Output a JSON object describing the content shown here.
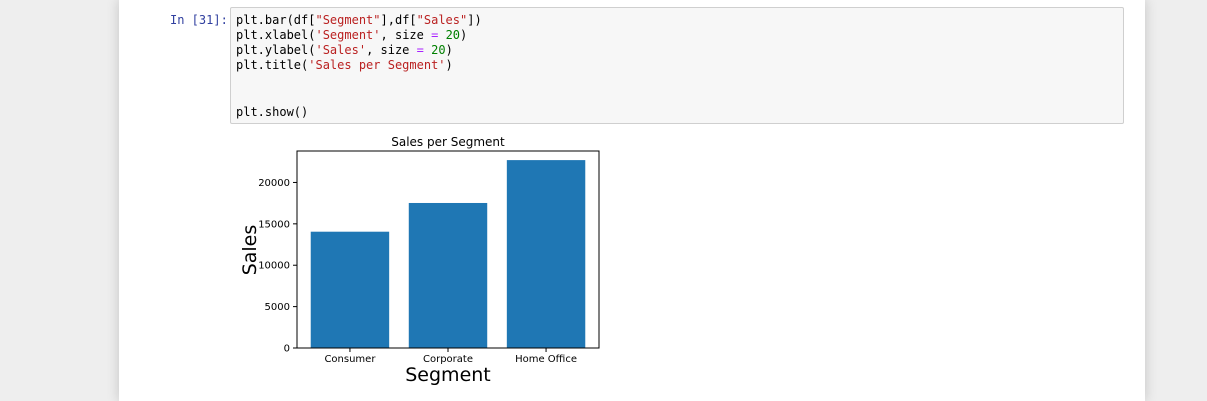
{
  "cell": {
    "prompt": "In [31]:",
    "code": {
      "l1_a": "plt.bar(df[",
      "l1_s1": "\"Segment\"",
      "l1_b": "],df[",
      "l1_s2": "\"Sales\"",
      "l1_c": "])",
      "l2_a": "plt.xlabel(",
      "l2_s": "'Segment'",
      "l2_b": ", size ",
      "l2_op": "=",
      "l2_sp": " ",
      "l2_n": "20",
      "l2_c": ")",
      "l3_a": "plt.ylabel(",
      "l3_s": "'Sales'",
      "l3_b": ", size ",
      "l3_op": "=",
      "l3_sp": " ",
      "l3_n": "20",
      "l3_c": ")",
      "l4_a": "plt.title(",
      "l4_s": "'Sales per Segment'",
      "l4_c": ")",
      "l5": "plt.show()"
    }
  },
  "chart_data": {
    "type": "bar",
    "title": "Sales per Segment",
    "xlabel": "Segment",
    "ylabel": "Sales",
    "categories": [
      "Consumer",
      "Corporate",
      "Home Office"
    ],
    "values": [
      14050,
      17520,
      22700
    ],
    "ylim": [
      0,
      23800
    ],
    "yticks": [
      0,
      5000,
      10000,
      15000,
      20000
    ],
    "ytick_labels": [
      "0",
      "5000",
      "10000",
      "15000",
      "20000"
    ],
    "grid": false,
    "bar_color": "#1f77b4"
  }
}
